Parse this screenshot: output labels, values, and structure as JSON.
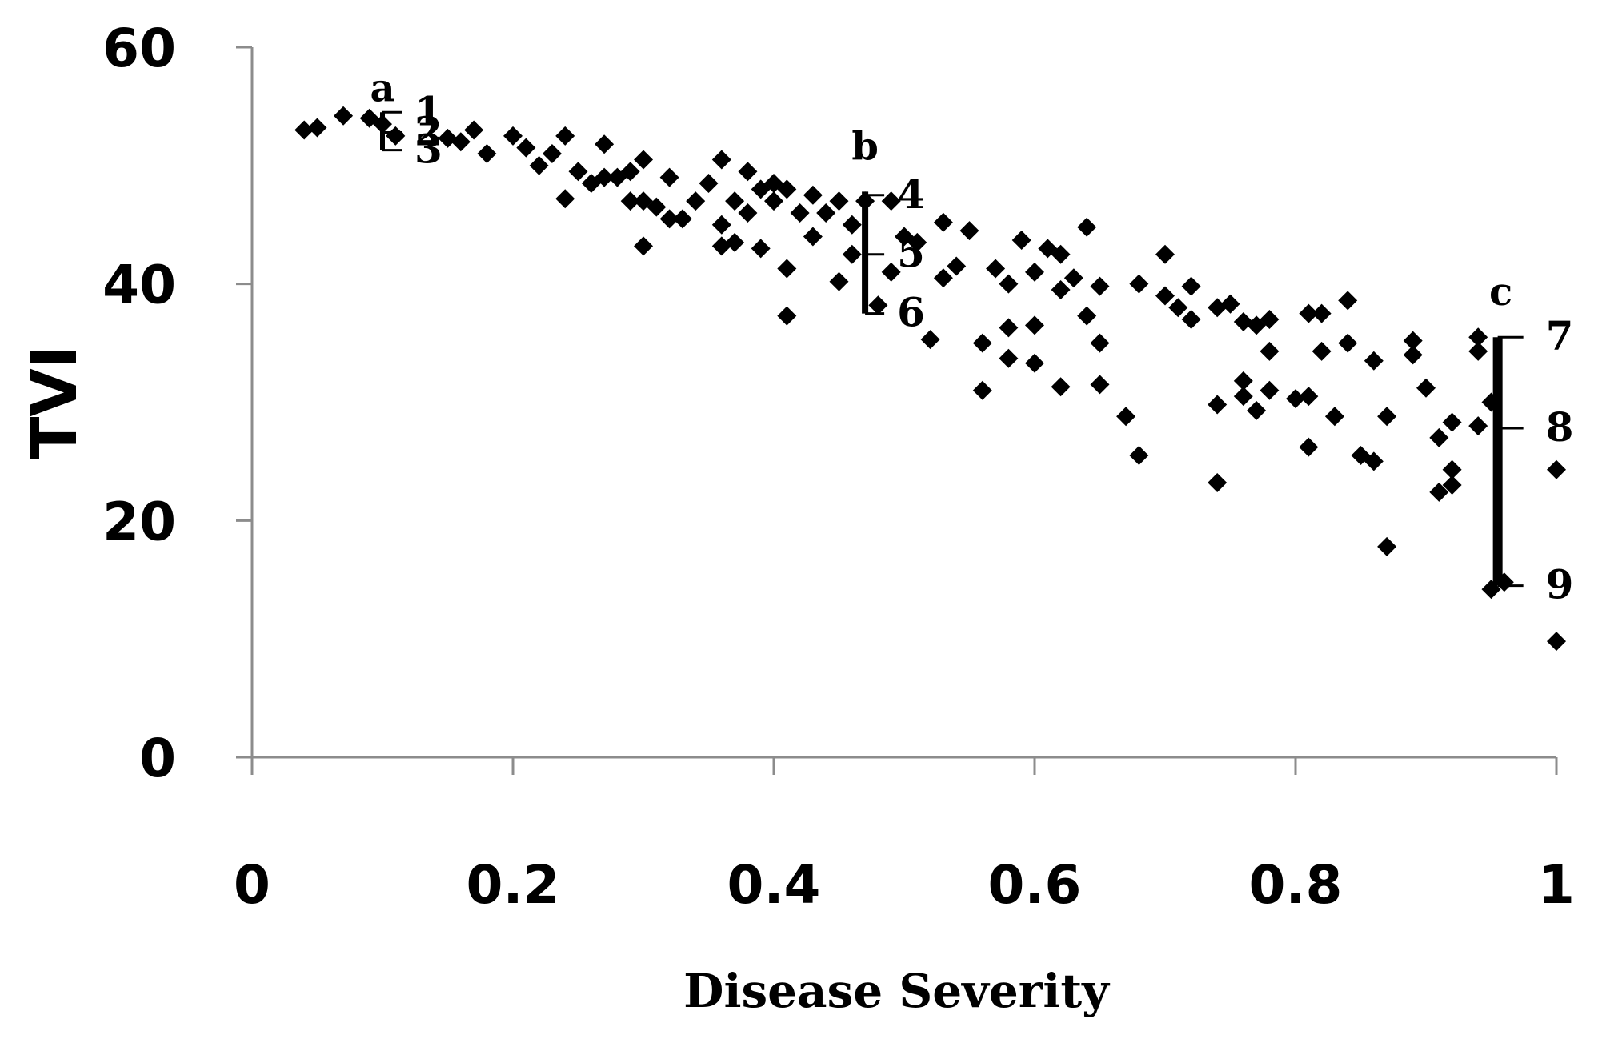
{
  "chart_data": {
    "type": "scatter",
    "title": "",
    "xlabel": "Disease Severity",
    "ylabel": "TVI",
    "xlim": [
      0,
      1
    ],
    "ylim": [
      0,
      60
    ],
    "x_ticks": [
      "0",
      "0.2",
      "0.4",
      "0.6",
      "0.8",
      "1"
    ],
    "y_ticks": [
      "0",
      "20",
      "40",
      "60"
    ],
    "marker": "diamond",
    "color": "#000000",
    "series": [
      {
        "name": "TVI",
        "points": [
          [
            0.04,
            53
          ],
          [
            0.05,
            53.2
          ],
          [
            0.07,
            54.2
          ],
          [
            0.09,
            54
          ],
          [
            0.1,
            53.5
          ],
          [
            0.11,
            52.5
          ],
          [
            0.15,
            52.3
          ],
          [
            0.16,
            52
          ],
          [
            0.17,
            53
          ],
          [
            0.18,
            51
          ],
          [
            0.2,
            52.5
          ],
          [
            0.21,
            51.5
          ],
          [
            0.22,
            50
          ],
          [
            0.23,
            51
          ],
          [
            0.24,
            52.5
          ],
          [
            0.24,
            47.2
          ],
          [
            0.25,
            49.5
          ],
          [
            0.26,
            48.5
          ],
          [
            0.27,
            49
          ],
          [
            0.27,
            51.8
          ],
          [
            0.28,
            49
          ],
          [
            0.29,
            49.5
          ],
          [
            0.29,
            47
          ],
          [
            0.3,
            50.5
          ],
          [
            0.3,
            47
          ],
          [
            0.3,
            43.2
          ],
          [
            0.31,
            46.5
          ],
          [
            0.32,
            49
          ],
          [
            0.32,
            45.5
          ],
          [
            0.33,
            45.5
          ],
          [
            0.34,
            47
          ],
          [
            0.35,
            48.5
          ],
          [
            0.36,
            50.5
          ],
          [
            0.36,
            45
          ],
          [
            0.36,
            43.2
          ],
          [
            0.37,
            43.5
          ],
          [
            0.37,
            47
          ],
          [
            0.38,
            49.5
          ],
          [
            0.38,
            46
          ],
          [
            0.39,
            48
          ],
          [
            0.39,
            43
          ],
          [
            0.4,
            47
          ],
          [
            0.4,
            48.5
          ],
          [
            0.41,
            48
          ],
          [
            0.41,
            41.3
          ],
          [
            0.41,
            37.3
          ],
          [
            0.42,
            46
          ],
          [
            0.43,
            47.5
          ],
          [
            0.43,
            44
          ],
          [
            0.44,
            46
          ],
          [
            0.45,
            47
          ],
          [
            0.45,
            40.2
          ],
          [
            0.46,
            45
          ],
          [
            0.46,
            42.5
          ],
          [
            0.47,
            47
          ],
          [
            0.48,
            38.2
          ],
          [
            0.49,
            41
          ],
          [
            0.49,
            47
          ],
          [
            0.5,
            44
          ],
          [
            0.51,
            43.5
          ],
          [
            0.52,
            35.3
          ],
          [
            0.53,
            45.2
          ],
          [
            0.53,
            40.5
          ],
          [
            0.54,
            41.5
          ],
          [
            0.55,
            44.5
          ],
          [
            0.56,
            35
          ],
          [
            0.56,
            31
          ],
          [
            0.57,
            41.3
          ],
          [
            0.58,
            40
          ],
          [
            0.58,
            36.3
          ],
          [
            0.58,
            33.7
          ],
          [
            0.59,
            43.7
          ],
          [
            0.6,
            41
          ],
          [
            0.6,
            36.5
          ],
          [
            0.6,
            33.3
          ],
          [
            0.61,
            43
          ],
          [
            0.62,
            42.5
          ],
          [
            0.62,
            39.5
          ],
          [
            0.62,
            31.3
          ],
          [
            0.63,
            40.5
          ],
          [
            0.64,
            44.8
          ],
          [
            0.64,
            37.3
          ],
          [
            0.65,
            39.8
          ],
          [
            0.65,
            35
          ],
          [
            0.65,
            31.5
          ],
          [
            0.67,
            28.8
          ],
          [
            0.68,
            40
          ],
          [
            0.68,
            25.5
          ],
          [
            0.7,
            42.5
          ],
          [
            0.7,
            39
          ],
          [
            0.71,
            38
          ],
          [
            0.72,
            37
          ],
          [
            0.72,
            39.8
          ],
          [
            0.74,
            38
          ],
          [
            0.74,
            29.8
          ],
          [
            0.74,
            23.2
          ],
          [
            0.75,
            38.3
          ],
          [
            0.76,
            36.8
          ],
          [
            0.76,
            31.8
          ],
          [
            0.76,
            30.5
          ],
          [
            0.77,
            36.5
          ],
          [
            0.77,
            29.3
          ],
          [
            0.78,
            37
          ],
          [
            0.78,
            34.3
          ],
          [
            0.78,
            31
          ],
          [
            0.8,
            30.3
          ],
          [
            0.81,
            37.5
          ],
          [
            0.81,
            30.5
          ],
          [
            0.81,
            26.2
          ],
          [
            0.82,
            37.5
          ],
          [
            0.82,
            34.3
          ],
          [
            0.83,
            28.8
          ],
          [
            0.84,
            38.6
          ],
          [
            0.84,
            35
          ],
          [
            0.85,
            25.5
          ],
          [
            0.86,
            33.5
          ],
          [
            0.86,
            25
          ],
          [
            0.87,
            28.8
          ],
          [
            0.87,
            17.8
          ],
          [
            0.89,
            35.2
          ],
          [
            0.89,
            34
          ],
          [
            0.9,
            31.2
          ],
          [
            0.91,
            27
          ],
          [
            0.91,
            22.4
          ],
          [
            0.92,
            28.3
          ],
          [
            0.92,
            24.3
          ],
          [
            0.92,
            23
          ],
          [
            0.94,
            35.5
          ],
          [
            0.94,
            34.3
          ],
          [
            0.94,
            28
          ],
          [
            0.95,
            30
          ],
          [
            0.95,
            14.2
          ],
          [
            0.96,
            14.8
          ],
          [
            1.0,
            24.3
          ],
          [
            1.0,
            9.8
          ]
        ]
      }
    ],
    "range_bars": [
      {
        "label": "a",
        "x": 0.1,
        "y_top": 54.5,
        "y_bottom": 51.3,
        "levels": [
          {
            "num": "1",
            "y": 54.5
          },
          {
            "num": "2",
            "y": 52.8
          },
          {
            "num": "3",
            "y": 51.3
          }
        ]
      },
      {
        "label": "b",
        "x": 0.47,
        "y_top": 47.8,
        "y_bottom": 37.5,
        "levels": [
          {
            "num": "4",
            "y": 47.5
          },
          {
            "num": "5",
            "y": 42.5
          },
          {
            "num": "6",
            "y": 37.5
          }
        ]
      },
      {
        "label": "c",
        "x": 0.955,
        "y_top": 35.5,
        "y_bottom": 14.5,
        "levels": [
          {
            "num": "7",
            "y": 35.5
          },
          {
            "num": "8",
            "y": 27.8
          },
          {
            "num": "9",
            "y": 14.5
          }
        ]
      }
    ]
  }
}
